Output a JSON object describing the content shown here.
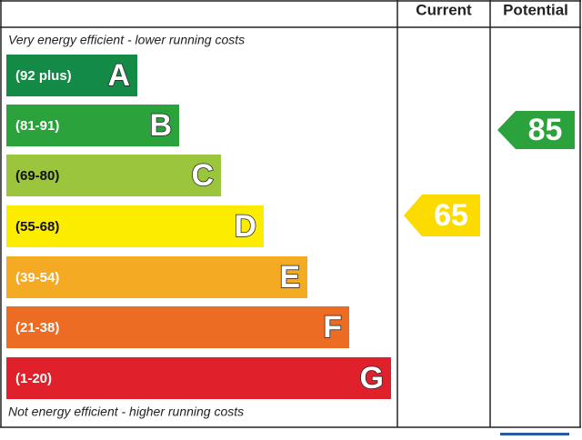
{
  "header": {
    "current": "Current",
    "potential": "Potential"
  },
  "top_note": "Very energy efficient - lower running costs",
  "bottom_note": "Not energy efficient - higher running costs",
  "bands": [
    {
      "range": "(92 plus)",
      "letter": "A",
      "color": "#138a45"
    },
    {
      "range": "(81-91)",
      "letter": "B",
      "color": "#2ba23c"
    },
    {
      "range": "(69-80)",
      "letter": "C",
      "color": "#9bc53d"
    },
    {
      "range": "(55-68)",
      "letter": "D",
      "color": "#fcec00"
    },
    {
      "range": "(39-54)",
      "letter": "E",
      "color": "#f4aa23"
    },
    {
      "range": "(21-38)",
      "letter": "F",
      "color": "#ec6c23"
    },
    {
      "range": "(1-20)",
      "letter": "G",
      "color": "#e0202b"
    }
  ],
  "current": {
    "value": 65,
    "color": "#fcdc00"
  },
  "potential": {
    "value": 85,
    "color": "#2ba23c"
  }
}
